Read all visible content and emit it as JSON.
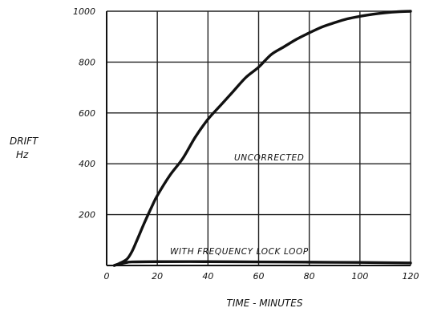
{
  "chart_data": {
    "type": "line",
    "title": "",
    "xlabel": "TIME - MINUTES",
    "ylabel": [
      "DRIFT",
      "Hz"
    ],
    "xlim": [
      0,
      120
    ],
    "ylim": [
      0,
      1000
    ],
    "x_ticks": [
      0,
      20,
      40,
      60,
      80,
      100,
      120
    ],
    "y_ticks": [
      200,
      400,
      600,
      800,
      1000
    ],
    "grid": true,
    "series": [
      {
        "annotation": "UNCORRECTED",
        "color": "#111111",
        "x": [
          3,
          5,
          8,
          10,
          12,
          15,
          18,
          20,
          25,
          30,
          35,
          40,
          45,
          50,
          55,
          60,
          65,
          70,
          75,
          80,
          85,
          90,
          95,
          100,
          105,
          110,
          115,
          120
        ],
        "y": [
          0,
          8,
          25,
          55,
          100,
          170,
          235,
          275,
          355,
          420,
          505,
          575,
          630,
          685,
          740,
          780,
          830,
          860,
          890,
          915,
          938,
          955,
          970,
          980,
          988,
          994,
          998,
          1000
        ]
      },
      {
        "annotation": "WITH FREQUENCY LOCK LOOP",
        "color": "#111111",
        "x": [
          3,
          5,
          8,
          10,
          20,
          40,
          60,
          80,
          100,
          120
        ],
        "y": [
          0,
          6,
          12,
          14,
          15,
          15,
          14,
          13,
          12,
          10
        ]
      }
    ]
  }
}
